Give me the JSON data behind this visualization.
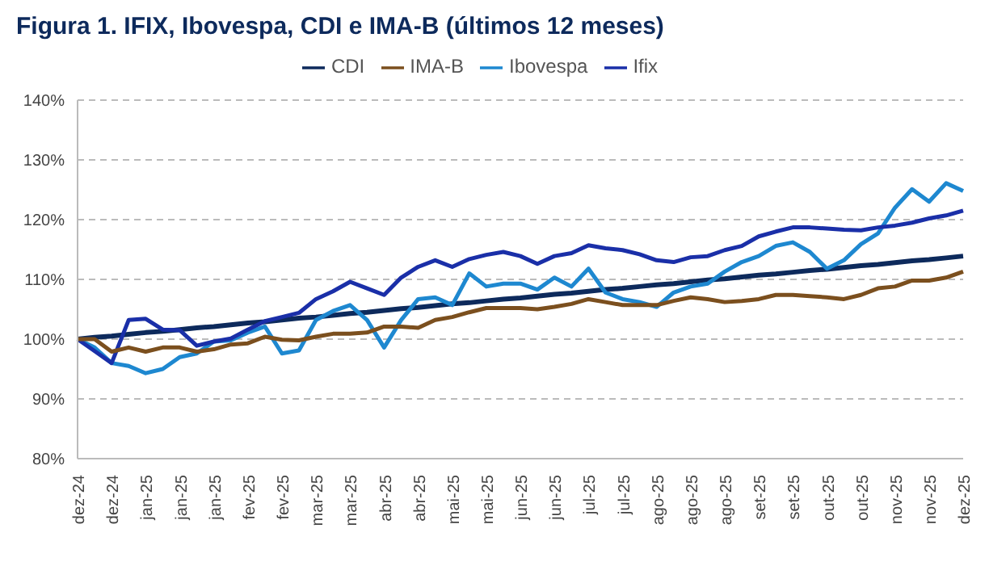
{
  "chart_data": {
    "type": "line",
    "title": "Figura 1. IFIX, Ibovespa, CDI e IMA-B (últimos 12 meses)",
    "categories": [
      "dez-24",
      null,
      "dez-24",
      null,
      "jan-25",
      null,
      "jan-25",
      null,
      "jan-25",
      null,
      "fev-25",
      null,
      "fev-25",
      null,
      "mar-25",
      null,
      "mar-25",
      null,
      "abr-25",
      null,
      "abr-25",
      null,
      "mai-25",
      null,
      "mai-25",
      null,
      "jun-25",
      null,
      "jun-25",
      null,
      "jul-25",
      null,
      "jul-25",
      null,
      "ago-25",
      null,
      "ago-25",
      null,
      "ago-25",
      null,
      "set-25",
      null,
      "set-25",
      null,
      "out-25",
      null,
      "out-25",
      null,
      "nov-25",
      null,
      "nov-25",
      null,
      "dez-25"
    ],
    "series": [
      {
        "name": "CDI",
        "color": "#0d2a5c",
        "values": [
          100,
          100.3,
          100.5,
          100.8,
          101.1,
          101.3,
          101.6,
          101.9,
          102.1,
          102.4,
          102.7,
          102.9,
          103.2,
          103.5,
          103.7,
          104,
          104.3,
          104.5,
          104.8,
          105.1,
          105.3,
          105.6,
          105.9,
          106.1,
          106.4,
          106.7,
          106.9,
          107.2,
          107.5,
          107.7,
          108,
          108.3,
          108.5,
          108.8,
          109.1,
          109.3,
          109.6,
          109.9,
          110.1,
          110.4,
          110.7,
          110.9,
          111.2,
          111.5,
          111.7,
          112,
          112.3,
          112.5,
          112.8,
          113.1,
          113.3,
          113.6,
          113.9
        ]
      },
      {
        "name": "Ibovespa",
        "color": "#1e88d0",
        "values": [
          100,
          98.6,
          96,
          95.5,
          94.3,
          95,
          97,
          97.6,
          99.6,
          99.8,
          101.1,
          102.1,
          97.6,
          98.1,
          103.2,
          104.7,
          105.7,
          103.2,
          98.6,
          103.2,
          106.7,
          107,
          105.7,
          111,
          108.8,
          109.3,
          109.3,
          108.3,
          110.3,
          108.8,
          111.8,
          107.8,
          106.7,
          106.2,
          105.4,
          107.8,
          108.8,
          109.3,
          111.3,
          112.9,
          113.9,
          115.6,
          116.2,
          114.6,
          111.8,
          113.2,
          115.9,
          117.7,
          122,
          125.1,
          123,
          126.1,
          124.8
        ]
      },
      {
        "name": "Ifix",
        "color": "#1a2fa8",
        "values": [
          100,
          98,
          96,
          103.2,
          103.4,
          101.6,
          101.5,
          98.9,
          99.6,
          100.1,
          101.6,
          103,
          103.7,
          104.4,
          106.7,
          108,
          109.6,
          108.5,
          107.4,
          110.3,
          112.1,
          113.2,
          112.1,
          113.4,
          114.1,
          114.6,
          113.9,
          112.6,
          113.9,
          114.4,
          115.7,
          115.2,
          114.9,
          114.2,
          113.2,
          112.9,
          113.7,
          113.9,
          114.9,
          115.6,
          117.2,
          118,
          118.7,
          118.7,
          118.5,
          118.3,
          118.2,
          118.7,
          119,
          119.5,
          120.2,
          120.7,
          121.5
        ]
      },
      {
        "name": "IMA-B",
        "color": "#7b4f1e",
        "values": [
          100,
          100,
          97.9,
          98.6,
          97.9,
          98.6,
          98.6,
          97.9,
          98.3,
          99.1,
          99.3,
          100.4,
          99.9,
          99.8,
          100.4,
          100.9,
          100.9,
          101.1,
          102.1,
          102.1,
          101.9,
          103.2,
          103.7,
          104.5,
          105.2,
          105.2,
          105.2,
          105,
          105.4,
          105.9,
          106.7,
          106.2,
          105.7,
          105.7,
          105.7,
          106.4,
          107,
          106.7,
          106.2,
          106.4,
          106.7,
          107.4,
          107.4,
          107.2,
          107,
          106.7,
          107.4,
          108.5,
          108.8,
          109.8,
          109.8,
          110.3,
          111.3
        ]
      }
    ],
    "ylim": [
      80,
      140
    ],
    "yticks": [
      {
        "value": 80,
        "label": "80%"
      },
      {
        "value": 90,
        "label": "90%"
      },
      {
        "value": 100,
        "label": "100%"
      },
      {
        "value": 110,
        "label": "110%"
      },
      {
        "value": 120,
        "label": "120%"
      },
      {
        "value": 130,
        "label": "130%"
      },
      {
        "value": 140,
        "label": "140%"
      }
    ],
    "grid": "y",
    "legend": "top",
    "marker": "none",
    "line_style": "solid"
  }
}
